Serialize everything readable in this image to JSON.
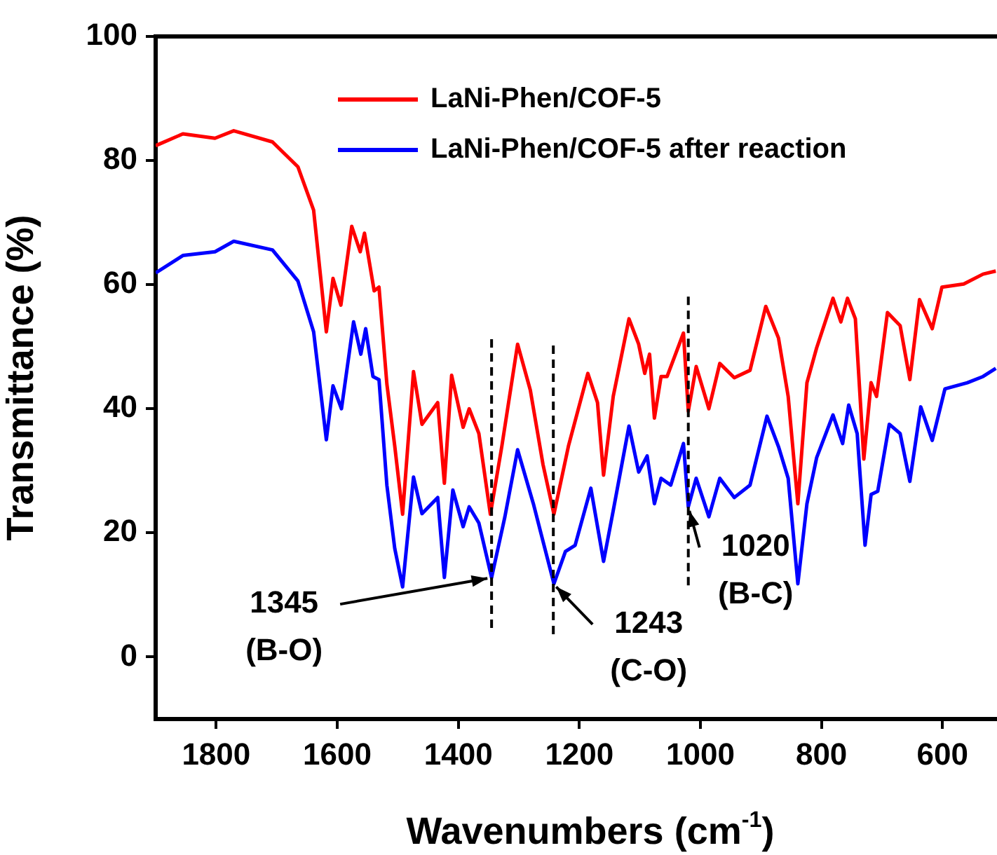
{
  "chart_data": {
    "type": "line",
    "xlabel": "Wavenumbers (cm$^{-1}$)",
    "ylabel": "Transmittance (%)",
    "xlim": [
      1900,
      510
    ],
    "xticks": [
      1800,
      1600,
      1400,
      1200,
      1000,
      800,
      600
    ],
    "ylim": [
      -10,
      100
    ],
    "yticks": [
      0,
      20,
      40,
      60,
      80,
      100
    ],
    "grid": false,
    "legend": "top right",
    "marker": "none",
    "line_style": "solid",
    "series": [
      {
        "name": "LaNi-Phen/COF-5",
        "color": "#ff0000",
        "x": [
          1900,
          1855,
          1802,
          1771,
          1707,
          1665,
          1639,
          1618,
          1607,
          1594,
          1576,
          1562,
          1555,
          1539,
          1531,
          1518,
          1505,
          1492,
          1474,
          1460,
          1434,
          1423,
          1411,
          1392,
          1382,
          1366,
          1347,
          1328,
          1302,
          1281,
          1260,
          1242,
          1218,
          1186,
          1170,
          1160,
          1144,
          1118,
          1102,
          1092,
          1084,
          1076,
          1065,
          1055,
          1028,
          1020,
          1007,
          986,
          968,
          944,
          918,
          892,
          871,
          855,
          839,
          824,
          808,
          781,
          768,
          757,
          744,
          730,
          718,
          709,
          691,
          670,
          654,
          638,
          617,
          601,
          565,
          533,
          512
        ],
        "values": [
          82.4,
          84.3,
          83.6,
          84.8,
          83.0,
          79,
          72,
          52.4,
          61,
          56.7,
          69.4,
          65.3,
          68.3,
          59,
          59.6,
          44,
          34,
          23,
          46,
          37.5,
          41,
          28,
          45.4,
          37,
          40,
          36,
          23,
          34,
          50.4,
          43,
          31,
          23,
          34,
          45.7,
          41,
          29.3,
          42,
          54.5,
          50.4,
          45.7,
          48.8,
          38.5,
          45.2,
          45.2,
          52.2,
          39.6,
          46.8,
          40,
          47.3,
          45,
          46.2,
          56.5,
          51.4,
          42,
          24.7,
          44.2,
          49.8,
          57.8,
          54,
          57.8,
          54.5,
          31.9,
          44.2,
          42,
          55.5,
          53.4,
          44.7,
          57.6,
          52.9,
          59.6,
          60.1,
          61.7,
          62.2
        ]
      },
      {
        "name": "LaNi-Phen/COF-5 after reaction",
        "color": "#0000ff",
        "x": [
          1900,
          1855,
          1802,
          1771,
          1707,
          1665,
          1639,
          1618,
          1607,
          1593,
          1573,
          1561,
          1553,
          1541,
          1531,
          1518,
          1505,
          1492,
          1474,
          1460,
          1434,
          1423,
          1409,
          1392,
          1382,
          1366,
          1345,
          1323,
          1302,
          1276,
          1242,
          1223,
          1207,
          1181,
          1160,
          1144,
          1118,
          1102,
          1088,
          1076,
          1065,
          1049,
          1028,
          1020,
          1007,
          986,
          968,
          944,
          918,
          890,
          871,
          855,
          839,
          824,
          808,
          781,
          765,
          755,
          741,
          728,
          718,
          707,
          688,
          670,
          654,
          636,
          617,
          596,
          559,
          533,
          512
        ],
        "values": [
          61.9,
          64.7,
          65.3,
          67,
          65.6,
          60.6,
          52.4,
          35,
          43.7,
          40,
          54,
          48.8,
          52.9,
          45.2,
          44.7,
          27.7,
          17.5,
          11.3,
          29,
          23.1,
          25.7,
          12.8,
          26.9,
          21,
          24.2,
          21.6,
          12.8,
          22.6,
          33.4,
          24.7,
          11.8,
          17,
          18,
          27.2,
          15.4,
          23.6,
          37.2,
          29.8,
          32.4,
          24.7,
          28.8,
          27.7,
          34.4,
          24.2,
          28.8,
          22.6,
          28.8,
          25.7,
          27.7,
          38.8,
          33.9,
          28.8,
          11.8,
          24.7,
          32.1,
          39,
          34.4,
          40.6,
          36,
          18,
          26.2,
          26.7,
          37.5,
          36,
          28.3,
          40.3,
          34.9,
          43.2,
          44.2,
          45.2,
          46.5
        ]
      }
    ],
    "ref_lines": [
      {
        "axis": "x",
        "value": 1345,
        "color": "#000000",
        "line_style": "dashed"
      },
      {
        "axis": "x",
        "value": 1243,
        "color": "#000000",
        "line_style": "dashed"
      },
      {
        "axis": "x",
        "value": 1020,
        "color": "#000000",
        "line_style": "dashed"
      }
    ],
    "annotations": [
      {
        "text": "1345\n(B-O)",
        "x": 1345,
        "y": 12.8
      },
      {
        "text": "1243\n(C-O)",
        "x": 1243,
        "y": 11.8
      },
      {
        "text": "1020\n(B-C)",
        "x": 1020,
        "y": 24.2
      }
    ]
  }
}
